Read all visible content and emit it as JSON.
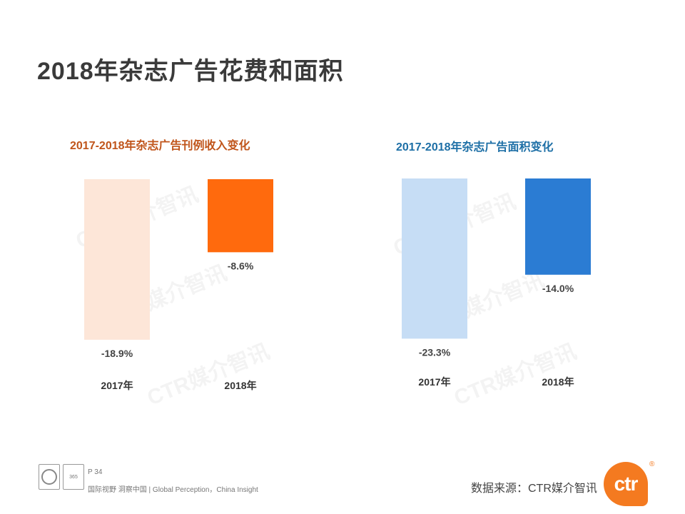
{
  "page_title": "2018年杂志广告花费和面积",
  "watermark_text": "CTR媒介智讯",
  "chart_data": [
    {
      "type": "bar",
      "title": "2017-2018年杂志广告刊例收入变化",
      "categories": [
        "2017年",
        "2018年"
      ],
      "values": [
        -18.9,
        -8.6
      ],
      "value_labels": [
        "-18.9%",
        "-8.6%"
      ],
      "colors": [
        "#fde6d8",
        "#ff6a0d"
      ],
      "ylim": [
        -20,
        0
      ],
      "grid": false
    },
    {
      "type": "bar",
      "title": "2017-2018年杂志广告面积变化",
      "categories": [
        "2017年",
        "2018年"
      ],
      "values": [
        -23.3,
        -14.0
      ],
      "value_labels": [
        "-23.3%",
        "-14.0%"
      ],
      "colors": [
        "#c6ddf5",
        "#2b7cd3"
      ],
      "ylim": [
        -24,
        0
      ],
      "grid": false
    }
  ],
  "footer": {
    "page_number": "P 34",
    "tagline": "国际视野  洞察中国 |  Global Perception，China Insight",
    "source": "数据来源：CTR媒介智讯",
    "logo_text": "ctr",
    "logo_reg": "®",
    "cert_badge": "365"
  }
}
